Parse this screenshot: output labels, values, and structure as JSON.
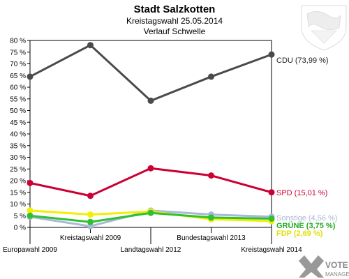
{
  "header": {
    "title": "Stadt Salzkotten",
    "subtitle1": "Kreistagswahl 25.05.2014",
    "subtitle2": "Verlauf Schwelle"
  },
  "logo": {
    "text": "VOTE MANAGER"
  },
  "chart_data": {
    "type": "line",
    "categories": [
      "Europawahl 2009",
      "Kreistagswahl 2009",
      "Landtagswahl 2012",
      "Bundestagswahl 2013",
      "Kreistagswahl 2014"
    ],
    "ylim": [
      0,
      80
    ],
    "yticks": [
      "0 %",
      "5 %",
      "10 %",
      "15 %",
      "20 %",
      "25 %",
      "30 %",
      "35 %",
      "40 %",
      "45 %",
      "50 %",
      "55 %",
      "60 %",
      "65 %",
      "70 %",
      "75 %",
      "80 %"
    ],
    "grid": false,
    "series": [
      {
        "key": "sonstige",
        "color": "#a8b8d8",
        "values": [
          4.5,
          0.5,
          7.2,
          5.5,
          4.56
        ],
        "end_label": "Sonstige (4,56 %)"
      },
      {
        "key": "fdp",
        "color": "#f0f000",
        "values": [
          7.2,
          5.5,
          6.8,
          3.5,
          2.7
        ],
        "end_label": "FDP (2,69 %)"
      },
      {
        "key": "gruene",
        "color": "#30c030",
        "values": [
          5.0,
          2.3,
          6.2,
          4.2,
          3.75
        ],
        "end_label": "GRÜNE (3,75 %)"
      },
      {
        "key": "spd",
        "color": "#cc0033",
        "values": [
          19.0,
          13.5,
          25.3,
          22.2,
          15.01
        ],
        "end_label": "SPD (15,01 %)"
      },
      {
        "key": "cdu",
        "color": "#4a4a4a",
        "values": [
          64.5,
          78.0,
          54.2,
          64.5,
          73.99
        ],
        "end_label": "CDU (73,99 %)"
      }
    ]
  }
}
